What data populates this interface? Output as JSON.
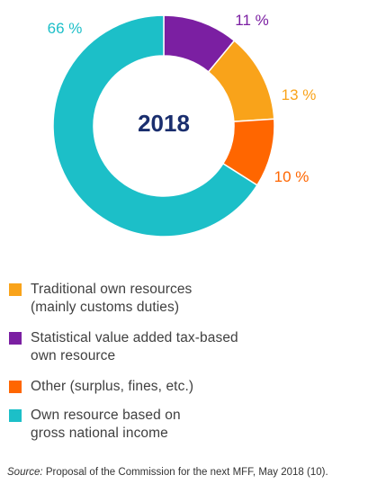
{
  "chart_data": {
    "type": "pie",
    "subtype": "donut",
    "center_label": "2018",
    "slices": [
      {
        "label": "Statistical value added tax-based own resource",
        "value": 11,
        "display": "11 %",
        "color": "#7b1fa2"
      },
      {
        "label": "Traditional own resources (mainly customs duties)",
        "value": 13,
        "display": "13 %",
        "color": "#f9a31a"
      },
      {
        "label": "Other (surplus, fines, etc.)",
        "value": 10,
        "display": "10 %",
        "color": "#ff6600"
      },
      {
        "label": "Own resource based on gross national income",
        "value": 66,
        "display": "66 %",
        "color": "#1cbfc8"
      }
    ],
    "legend": [
      {
        "text": "Traditional own resources\n(mainly customs duties)",
        "color": "#f9a31a"
      },
      {
        "text": "Statistical value added tax-based\nown resource",
        "color": "#7b1fa2"
      },
      {
        "text": "Other (surplus, fines, etc.)",
        "color": "#ff6600"
      },
      {
        "text": "Own resource based on\ngross national income",
        "color": "#1cbfc8"
      }
    ],
    "legend_position": "bottom"
  },
  "center_label_color": "#1a2e6e",
  "source": {
    "label": "Source:",
    "text": " Proposal of the Commission for the next MFF, May 2018 (10)."
  }
}
